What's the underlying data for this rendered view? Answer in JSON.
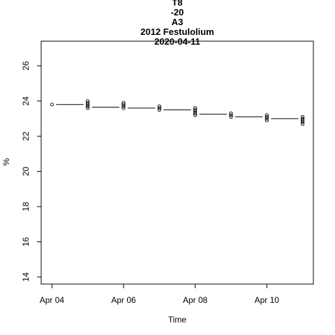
{
  "chart_data": {
    "type": "scatter",
    "title_lines": [
      "T8",
      "-20",
      "A3",
      "2012 Festulolium",
      "2020-04-11"
    ],
    "xlabel": "Time",
    "ylabel": "%",
    "x_tick_labels": [
      "Apr 04",
      "Apr 06",
      "Apr 08",
      "Apr 10"
    ],
    "x_tick_positions": [
      0,
      2,
      4,
      6
    ],
    "xlim": [
      -0.3,
      7.3
    ],
    "y_ticks": [
      14,
      16,
      18,
      20,
      22,
      24,
      26
    ],
    "ylim": [
      13.6,
      27.4
    ],
    "grid": false,
    "legend": "none",
    "points": [
      {
        "day": 0,
        "values": [
          23.8
        ]
      },
      {
        "day": 1,
        "values": [
          23.6,
          23.7,
          23.8,
          23.9,
          24.0
        ]
      },
      {
        "day": 2,
        "values": [
          23.6,
          23.7,
          23.8,
          23.9
        ]
      },
      {
        "day": 3,
        "values": [
          23.5,
          23.6,
          23.7
        ]
      },
      {
        "day": 4,
        "values": [
          23.2,
          23.3,
          23.4,
          23.5,
          23.6
        ]
      },
      {
        "day": 5,
        "values": [
          23.1,
          23.2,
          23.3
        ]
      },
      {
        "day": 6,
        "values": [
          22.9,
          23.0,
          23.1,
          23.2
        ]
      },
      {
        "day": 7,
        "values": [
          22.7,
          22.8,
          22.9,
          23.0,
          23.1
        ]
      }
    ],
    "line_steps": [
      {
        "from": 0,
        "to": 1,
        "value": 23.8
      },
      {
        "from": 1,
        "to": 2,
        "value": 23.65
      },
      {
        "from": 2,
        "to": 3,
        "value": 23.6
      },
      {
        "from": 3,
        "to": 4,
        "value": 23.5
      },
      {
        "from": 4,
        "to": 5,
        "value": 23.25
      },
      {
        "from": 5,
        "to": 6,
        "value": 23.1
      },
      {
        "from": 6,
        "to": 7,
        "value": 23.0
      }
    ]
  }
}
